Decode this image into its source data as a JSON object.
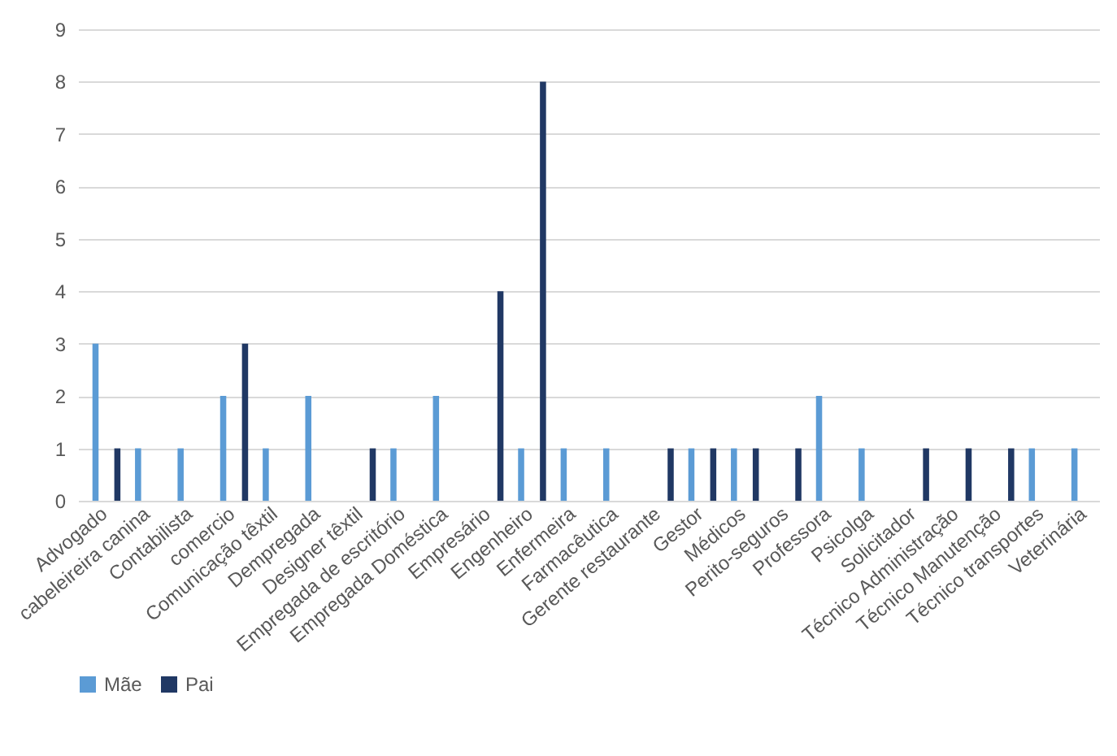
{
  "chart_data": {
    "type": "bar",
    "categories": [
      "Advogado",
      "cabeleireira canina",
      "Contabilista",
      "comercio",
      "Comunicação têxtil",
      "Dempregada",
      "Designer têxtil",
      "Empregada de escritório",
      "Empregada Doméstica",
      "Empresário",
      "Engenheiro",
      "Enfermeira",
      "Farmacêutica",
      "Gerente restaurante",
      "Gestor",
      "Médicos",
      "Perito-seguros",
      "Professora",
      "Psicolga",
      "Solicitador",
      "Técnico Administração",
      "Técnico Manutenção",
      "Técnico transportes",
      "Veterinária"
    ],
    "series": [
      {
        "name": "Mãe",
        "color": "#5b9bd5",
        "values": [
          3,
          1,
          1,
          2,
          1,
          2,
          null,
          1,
          2,
          null,
          1,
          1,
          1,
          null,
          1,
          1,
          null,
          2,
          1,
          null,
          null,
          null,
          1,
          1
        ]
      },
      {
        "name": "Pai",
        "color": "#203864",
        "values": [
          1,
          null,
          null,
          3,
          null,
          null,
          1,
          null,
          null,
          4,
          8,
          null,
          null,
          1,
          1,
          1,
          1,
          null,
          null,
          1,
          1,
          1,
          null,
          null
        ]
      }
    ],
    "ylim": [
      0,
      9
    ],
    "yticks": [
      0,
      1,
      2,
      3,
      4,
      5,
      6,
      7,
      8,
      9
    ],
    "grid": "y",
    "legend": "bottom"
  }
}
